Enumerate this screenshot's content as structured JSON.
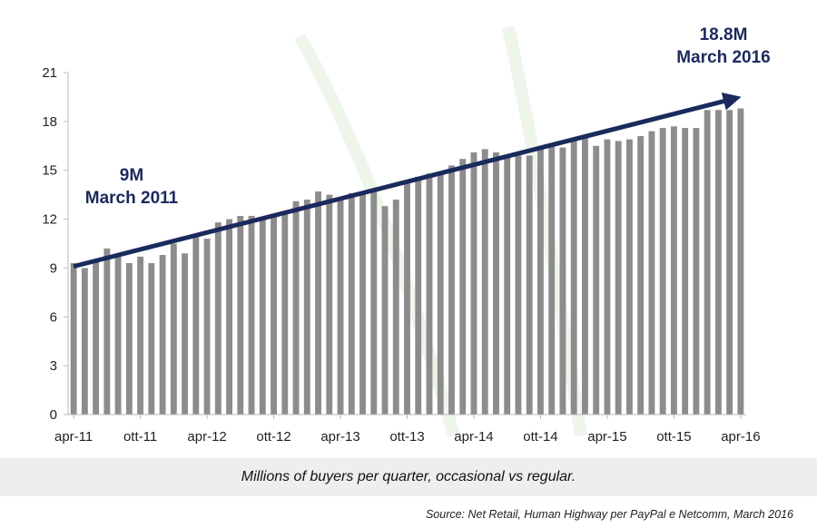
{
  "chart_data": {
    "type": "bar",
    "title": "",
    "xlabel": "",
    "ylabel": "",
    "ylim": [
      0,
      21
    ],
    "yticks": [
      0,
      3,
      6,
      9,
      12,
      15,
      18,
      21
    ],
    "grid": false,
    "x_tick_labels": [
      "apr-11",
      "ott-11",
      "apr-12",
      "ott-12",
      "apr-13",
      "ott-13",
      "apr-14",
      "ott-14",
      "apr-15",
      "ott-15",
      "apr-16"
    ],
    "values": [
      9.3,
      9.0,
      9.4,
      10.2,
      9.7,
      9.3,
      9.7,
      9.3,
      9.8,
      10.5,
      9.9,
      11.0,
      10.8,
      11.8,
      12.0,
      12.2,
      12.2,
      12.1,
      12.2,
      12.5,
      13.1,
      13.2,
      13.7,
      13.5,
      13.3,
      13.6,
      13.6,
      13.8,
      12.8,
      13.2,
      14.3,
      14.6,
      14.8,
      14.9,
      15.3,
      15.7,
      16.1,
      16.3,
      16.1,
      15.8,
      15.9,
      15.9,
      16.3,
      16.5,
      16.4,
      16.9,
      17.0,
      16.5,
      16.9,
      16.8,
      16.9,
      17.1,
      17.4,
      17.6,
      17.7,
      17.6,
      17.6,
      18.7,
      18.7,
      18.7,
      18.8
    ],
    "color": "#8c8c8c",
    "trend_arrow": {
      "from": {
        "index": 0,
        "value": 9.1
      },
      "to": {
        "index": 60,
        "value": 19.5
      },
      "color": "#1b2a5c"
    },
    "annotations": [
      {
        "line1": "9M",
        "line2": "March 2011"
      },
      {
        "line1": "18.8M",
        "line2": "March 2016"
      }
    ]
  },
  "caption": "Millions of buyers per quarter, occasional vs regular.",
  "source": "Source: Net Retail, Human Highway per PayPal e Netcomm,  March 2016"
}
